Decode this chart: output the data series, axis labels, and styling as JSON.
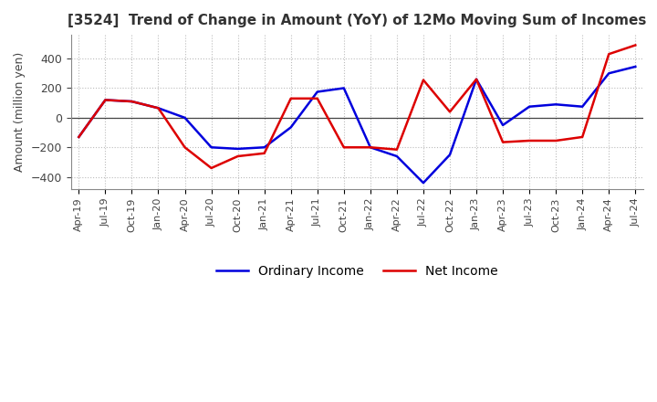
{
  "title": "[3524]  Trend of Change in Amount (YoY) of 12Mo Moving Sum of Incomes",
  "ylabel": "Amount (million yen)",
  "ylim": [
    -480,
    560
  ],
  "yticks": [
    -400,
    -200,
    0,
    200,
    400
  ],
  "background_color": "#ffffff",
  "grid_color": "#bbbbbb",
  "ordinary_income_color": "#0000dd",
  "net_income_color": "#dd0000",
  "dates": [
    "Apr-19",
    "Jul-19",
    "Oct-19",
    "Jan-20",
    "Apr-20",
    "Jul-20",
    "Oct-20",
    "Jan-21",
    "Apr-21",
    "Jul-21",
    "Oct-21",
    "Jan-22",
    "Apr-22",
    "Jul-22",
    "Oct-22",
    "Jan-23",
    "Apr-23",
    "Jul-23",
    "Oct-23",
    "Jan-24",
    "Apr-24",
    "Jul-24"
  ],
  "ordinary_income": [
    -130,
    120,
    110,
    65,
    0,
    -200,
    -210,
    -200,
    -65,
    175,
    200,
    -200,
    -260,
    -440,
    -250,
    260,
    -50,
    75,
    90,
    75,
    300,
    345
  ],
  "net_income": [
    -130,
    120,
    110,
    65,
    -200,
    -340,
    -260,
    -240,
    130,
    130,
    -200,
    -200,
    -215,
    255,
    40,
    260,
    -165,
    -155,
    -155,
    -130,
    430,
    490
  ]
}
